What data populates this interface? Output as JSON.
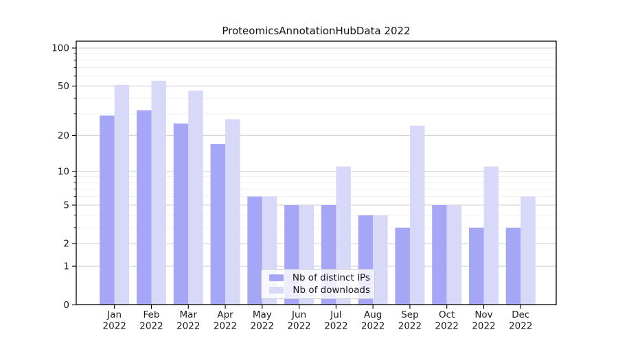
{
  "chart_data": {
    "type": "bar",
    "title": "ProteomicsAnnotationHubData 2022",
    "categories": [
      "Jan",
      "Feb",
      "Mar",
      "Apr",
      "May",
      "Jun",
      "Jul",
      "Aug",
      "Sep",
      "Oct",
      "Nov",
      "Dec"
    ],
    "x_tick_year": "2022",
    "series": [
      {
        "name": "Nb of distinct IPs",
        "color": "#a6a6f6",
        "values": [
          29,
          32,
          25,
          17,
          6,
          5,
          5,
          4,
          3,
          5,
          3,
          3
        ]
      },
      {
        "name": "Nb of downloads",
        "color": "#d8d8f8",
        "values": [
          51,
          55,
          46,
          27,
          6,
          5,
          11,
          4,
          24,
          5,
          11,
          6
        ]
      }
    ],
    "yscale": "log1p",
    "ylim": [
      0,
      100
    ],
    "y_major_ticks": [
      0,
      1,
      2,
      5,
      10,
      20,
      50,
      100
    ],
    "y_minor_ticks": [
      3,
      4,
      6,
      7,
      8,
      9,
      30,
      40,
      60,
      70,
      80,
      90
    ],
    "grid": "horizontal",
    "legend_position": "bottom-center"
  },
  "colors": {
    "bar_distinct_ips": "#a6a6f6",
    "bar_downloads": "#d8d8f8",
    "grid_major": "#cdcdcd",
    "grid_minor": "#ececec",
    "axis_frame": "#000000",
    "tick_label": "#1a1a1a",
    "legend_border": "#cccccc",
    "background": "#ffffff"
  }
}
